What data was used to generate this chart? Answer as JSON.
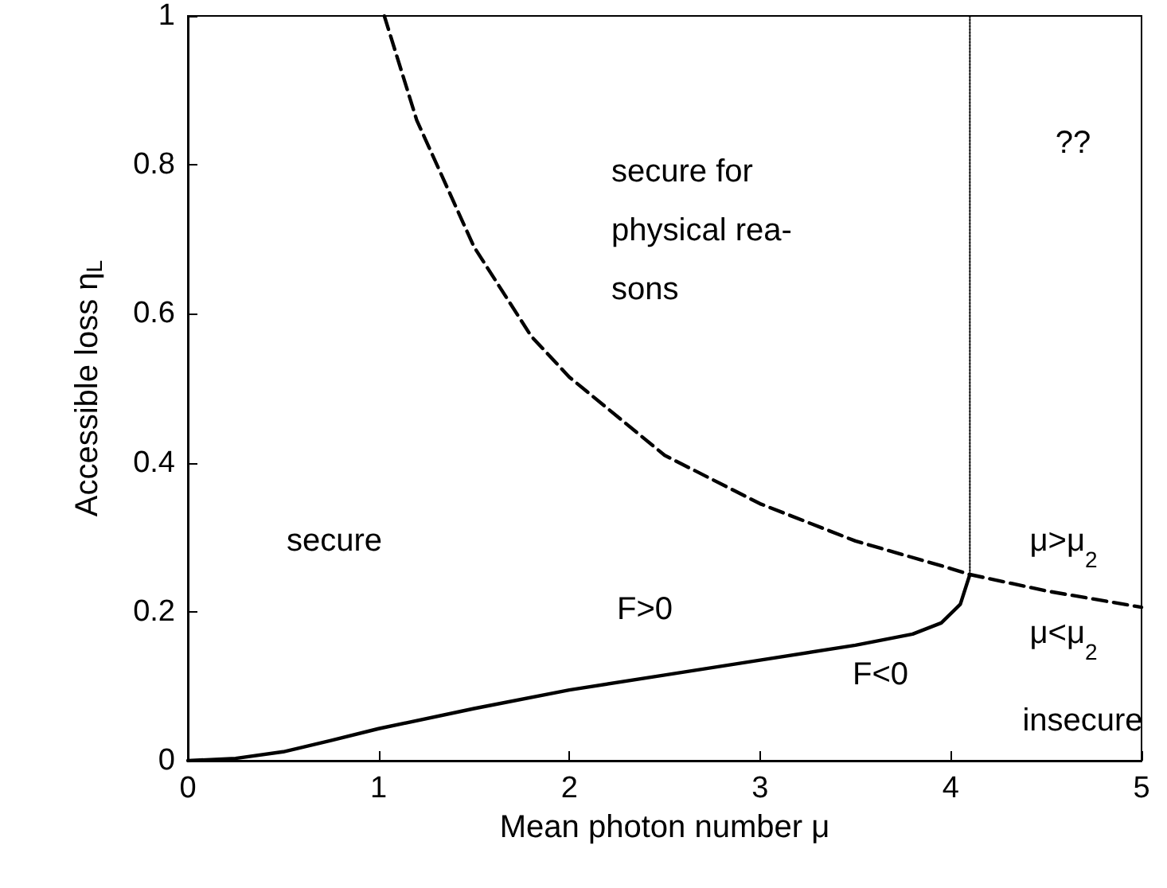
{
  "chart_data": {
    "type": "line",
    "xlabel": "Mean photon number μ",
    "ylabel": "Accessible loss η$_{L}$",
    "xlim": [
      0,
      5
    ],
    "ylim": [
      0,
      1
    ],
    "xticks": [
      0,
      1,
      2,
      3,
      4,
      5
    ],
    "yticks": [
      0,
      0.2,
      0.4,
      0.6,
      0.8,
      1
    ],
    "grid": false,
    "marker": "none",
    "series": [
      {
        "color": "#000000",
        "line_style": "dashed",
        "x": [
          1.03,
          1.2,
          1.5,
          1.8,
          2,
          2.5,
          3,
          3.5,
          4,
          4.1,
          4.5,
          5
        ],
        "values": [
          1,
          0.86,
          0.69,
          0.57,
          0.515,
          0.41,
          0.345,
          0.295,
          0.258,
          0.25,
          0.228,
          0.206
        ]
      },
      {
        "color": "#000000",
        "line_style": "solid",
        "x": [
          0,
          0.25,
          0.5,
          0.75,
          1,
          1.5,
          2,
          2.5,
          3,
          3.5,
          3.8,
          3.95,
          4.05,
          4.1
        ],
        "values": [
          0,
          0.003,
          0.012,
          0.027,
          0.043,
          0.07,
          0.095,
          0.115,
          0.135,
          0.155,
          0.17,
          0.185,
          0.21,
          0.25
        ]
      },
      {
        "color": "#000000",
        "line_style": "dotted",
        "x": [
          4.1,
          4.1
        ],
        "values": [
          0.25,
          1
        ]
      }
    ],
    "annotations": [
      "secure for\nphysical rea-\nsons",
      "??",
      "secure",
      "μ>μ$_{2}$",
      "μ<μ$_{2}$",
      "F>0",
      "F<0",
      "insecure"
    ]
  }
}
